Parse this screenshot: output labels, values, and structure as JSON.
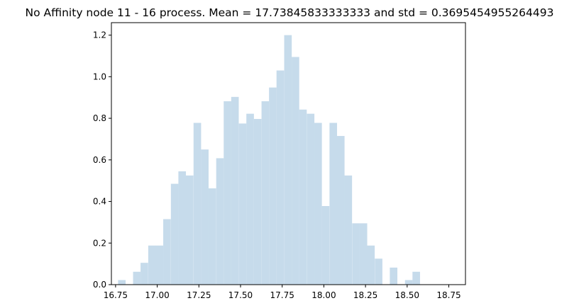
{
  "chart_data": {
    "type": "bar",
    "title": "No Affinity node 11 - 16 process. Mean = 17.73845833333333 and std = 0.3695454955264493",
    "xlabel": "",
    "ylabel": "",
    "xlim": [
      16.725,
      18.85
    ],
    "ylim": [
      0,
      1.26
    ],
    "grid": false,
    "bin_width": 0.0453,
    "bins": [
      {
        "x0": 16.765,
        "density": 0.022
      },
      {
        "x0": 16.855,
        "density": 0.062
      },
      {
        "x0": 16.9,
        "density": 0.105
      },
      {
        "x0": 16.946,
        "density": 0.188
      },
      {
        "x0": 16.991,
        "density": 0.188
      },
      {
        "x0": 17.036,
        "density": 0.315
      },
      {
        "x0": 17.082,
        "density": 0.485
      },
      {
        "x0": 17.127,
        "density": 0.545
      },
      {
        "x0": 17.172,
        "density": 0.525
      },
      {
        "x0": 17.218,
        "density": 0.778
      },
      {
        "x0": 17.263,
        "density": 0.65
      },
      {
        "x0": 17.308,
        "density": 0.463
      },
      {
        "x0": 17.354,
        "density": 0.608
      },
      {
        "x0": 17.399,
        "density": 0.882
      },
      {
        "x0": 17.444,
        "density": 0.903
      },
      {
        "x0": 17.49,
        "density": 0.775
      },
      {
        "x0": 17.535,
        "density": 0.822
      },
      {
        "x0": 17.58,
        "density": 0.797
      },
      {
        "x0": 17.626,
        "density": 0.882
      },
      {
        "x0": 17.671,
        "density": 0.948
      },
      {
        "x0": 17.716,
        "density": 1.03
      },
      {
        "x0": 17.762,
        "density": 1.2
      },
      {
        "x0": 17.807,
        "density": 1.095
      },
      {
        "x0": 17.852,
        "density": 0.842
      },
      {
        "x0": 17.898,
        "density": 0.822
      },
      {
        "x0": 17.943,
        "density": 0.778
      },
      {
        "x0": 17.988,
        "density": 0.378
      },
      {
        "x0": 18.034,
        "density": 0.778
      },
      {
        "x0": 18.079,
        "density": 0.715
      },
      {
        "x0": 18.124,
        "density": 0.525
      },
      {
        "x0": 18.17,
        "density": 0.295
      },
      {
        "x0": 18.215,
        "density": 0.295
      },
      {
        "x0": 18.26,
        "density": 0.188
      },
      {
        "x0": 18.306,
        "density": 0.125
      },
      {
        "x0": 18.396,
        "density": 0.082
      },
      {
        "x0": 18.487,
        "density": 0.022
      },
      {
        "x0": 18.532,
        "density": 0.062
      }
    ],
    "x_ticks": [
      "16.75",
      "17.00",
      "17.25",
      "17.50",
      "17.75",
      "18.00",
      "18.25",
      "18.50",
      "18.75"
    ],
    "x_tick_values": [
      16.75,
      17.0,
      17.25,
      17.5,
      17.75,
      18.0,
      18.25,
      18.5,
      18.75
    ],
    "y_ticks": [
      "0.0",
      "0.2",
      "0.4",
      "0.6",
      "0.8",
      "1.0",
      "1.2"
    ],
    "y_tick_values": [
      0,
      0.2,
      0.4,
      0.6,
      0.8,
      1.0,
      1.2
    ],
    "bar_color": "#c6dbeb"
  }
}
